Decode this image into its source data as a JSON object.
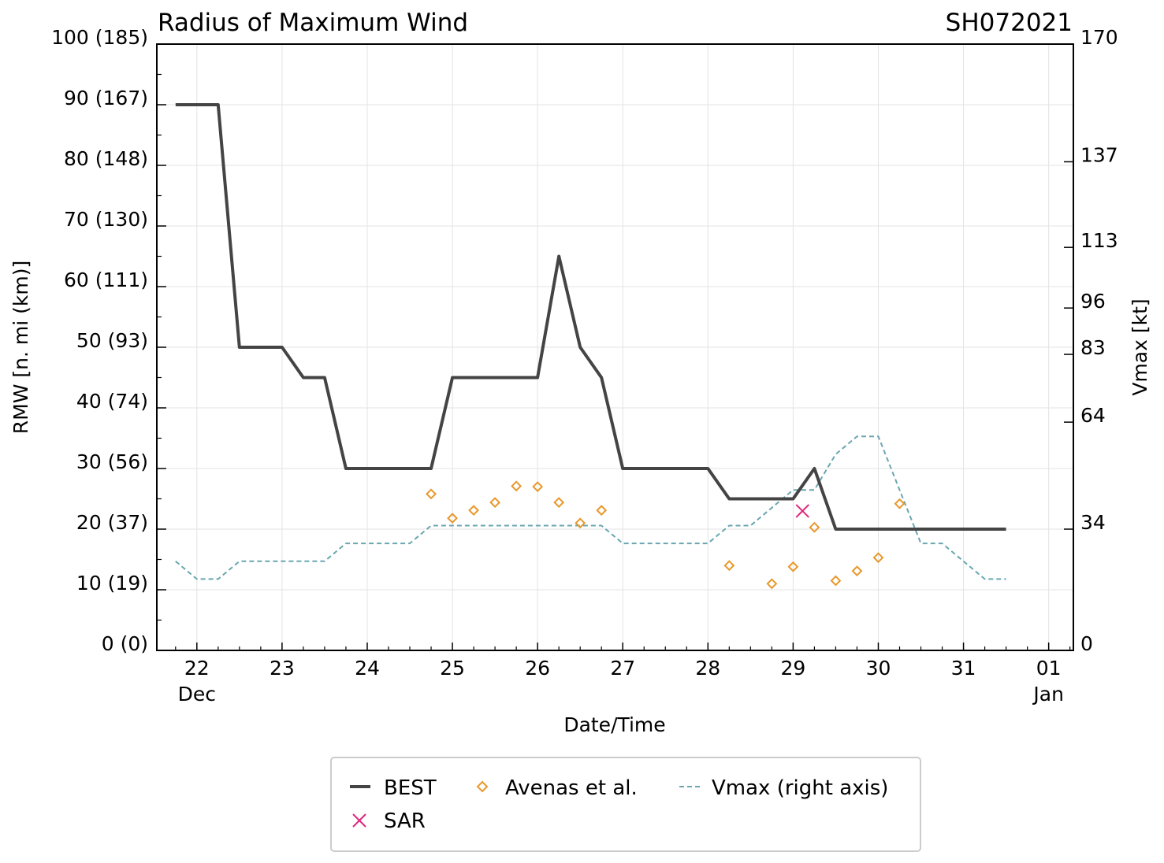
{
  "chart_data": {
    "type": "line",
    "title": "Radius of Maximum Wind",
    "storm_id": "SH072021",
    "xlabel": "Date/Time",
    "ylabel_left": "RMW [n. mi (km)]",
    "ylabel_right": "Vmax [kt]",
    "x_unit": "days since 00Z 21 Dec 2021",
    "xlim": [
      0.53,
      11.29
    ],
    "ylim_left": [
      0,
      100
    ],
    "ylim_right": [
      0,
      170
    ],
    "x_ticks": [
      {
        "x": 1,
        "label": "22",
        "sub": "Dec"
      },
      {
        "x": 2,
        "label": "23"
      },
      {
        "x": 3,
        "label": "24"
      },
      {
        "x": 4,
        "label": "25"
      },
      {
        "x": 5,
        "label": "26"
      },
      {
        "x": 6,
        "label": "27"
      },
      {
        "x": 7,
        "label": "28"
      },
      {
        "x": 8,
        "label": "29"
      },
      {
        "x": 9,
        "label": "30"
      },
      {
        "x": 10,
        "label": "31"
      },
      {
        "x": 11,
        "label": "01",
        "sub": "Jan"
      }
    ],
    "y_ticks_left": [
      {
        "y": 0,
        "label": "0 (0)"
      },
      {
        "y": 10,
        "label": "10 (19)"
      },
      {
        "y": 20,
        "label": "20 (37)"
      },
      {
        "y": 30,
        "label": "30 (56)"
      },
      {
        "y": 40,
        "label": "40 (74)"
      },
      {
        "y": 50,
        "label": "50 (93)"
      },
      {
        "y": 60,
        "label": "60 (111)"
      },
      {
        "y": 70,
        "label": "70 (130)"
      },
      {
        "y": 80,
        "label": "80 (148)"
      },
      {
        "y": 90,
        "label": "90 (167)"
      },
      {
        "y": 100,
        "label": "100 (185)"
      }
    ],
    "y_ticks_right": [
      {
        "y": 0,
        "label": "0"
      },
      {
        "y": 34,
        "label": "34"
      },
      {
        "y": 64,
        "label": "64"
      },
      {
        "y": 83,
        "label": "83"
      },
      {
        "y": 96,
        "label": "96"
      },
      {
        "y": 113,
        "label": "113"
      },
      {
        "y": 137,
        "label": "137"
      },
      {
        "y": 170,
        "label": "170"
      }
    ],
    "grid": true,
    "legend_position": "bottom-center",
    "series": [
      {
        "name": "BEST",
        "kind": "line",
        "color": "#444444",
        "axis": "left",
        "x": [
          0.75,
          1.0,
          1.25,
          1.5,
          1.75,
          2.0,
          2.25,
          2.5,
          2.75,
          3.0,
          3.25,
          3.5,
          3.75,
          4.0,
          4.25,
          4.5,
          4.75,
          5.0,
          5.25,
          5.5,
          5.75,
          6.0,
          6.25,
          6.5,
          6.75,
          7.0,
          7.25,
          7.5,
          7.75,
          8.0,
          8.25,
          8.5,
          8.75,
          9.0,
          9.25,
          9.5,
          9.75,
          10.0,
          10.25,
          10.5
        ],
        "y": [
          90,
          90,
          90,
          50,
          50,
          50,
          45,
          45,
          30,
          30,
          30,
          30,
          30,
          45,
          45,
          45,
          45,
          45,
          65,
          50,
          45,
          30,
          30,
          30,
          30,
          30,
          25,
          25,
          25,
          25,
          30,
          20,
          20,
          20,
          20,
          20,
          20,
          20,
          20,
          20
        ]
      },
      {
        "name": "SAR",
        "kind": "marker-x",
        "color": "#e0287c",
        "axis": "left",
        "x": [
          8.11
        ],
        "y": [
          23
        ]
      },
      {
        "name": "Avenas et al.",
        "kind": "marker-diamond",
        "color": "#e8982b",
        "axis": "left",
        "x": [
          3.75,
          4.0,
          4.25,
          4.5,
          4.75,
          5.0,
          5.25,
          5.5,
          5.75,
          7.25,
          7.75,
          8.0,
          8.25,
          8.5,
          8.75,
          9.0,
          9.25
        ],
        "y": [
          25.8,
          21.8,
          23.1,
          24.4,
          27.1,
          27.0,
          24.4,
          21.0,
          23.1,
          14.0,
          11.0,
          13.8,
          20.3,
          11.5,
          13.1,
          15.3,
          24.2
        ]
      },
      {
        "name": "Vmax (right axis)",
        "kind": "dashed-line",
        "color": "#6aa6b0",
        "axis": "right",
        "x": [
          0.75,
          1.0,
          1.25,
          1.5,
          1.75,
          2.0,
          2.25,
          2.5,
          2.75,
          3.0,
          3.25,
          3.5,
          3.75,
          4.0,
          4.25,
          4.5,
          4.75,
          5.0,
          5.25,
          5.5,
          5.75,
          6.0,
          6.25,
          6.5,
          6.75,
          7.0,
          7.25,
          7.5,
          7.75,
          8.0,
          8.25,
          8.5,
          8.75,
          9.0,
          9.25,
          9.5,
          9.75,
          10.0,
          10.25,
          10.5
        ],
        "y": [
          25,
          20,
          20,
          25,
          25,
          25,
          25,
          25,
          30,
          30,
          30,
          30,
          35,
          35,
          35,
          35,
          35,
          35,
          35,
          35,
          35,
          30,
          30,
          30,
          30,
          30,
          35,
          35,
          40,
          45,
          45,
          55,
          60,
          60,
          45,
          30,
          30,
          25,
          20,
          20
        ]
      }
    ]
  }
}
